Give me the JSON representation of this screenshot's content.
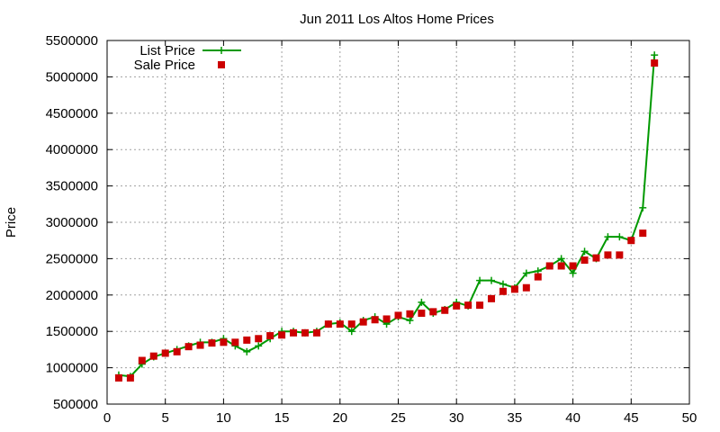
{
  "chart_data": {
    "type": "line",
    "title": "Jun 2011 Los Altos Home Prices",
    "xlabel": "",
    "ylabel": "Price",
    "xlim": [
      0,
      50
    ],
    "ylim": [
      500000,
      5500000
    ],
    "xticks": [
      0,
      5,
      10,
      15,
      20,
      25,
      30,
      35,
      40,
      45,
      50
    ],
    "yticks": [
      500000,
      1000000,
      1500000,
      2000000,
      2500000,
      3000000,
      3500000,
      4000000,
      4500000,
      5000000,
      5500000
    ],
    "grid": true,
    "legend_position": "top-left",
    "series": [
      {
        "name": "List Price",
        "style": "lines+points",
        "marker": "plus",
        "color": "#009900",
        "x": [
          1,
          2,
          3,
          4,
          5,
          6,
          7,
          8,
          9,
          10,
          11,
          12,
          13,
          14,
          15,
          16,
          17,
          18,
          19,
          20,
          21,
          22,
          23,
          24,
          25,
          26,
          27,
          28,
          29,
          30,
          31,
          32,
          33,
          34,
          35,
          36,
          37,
          38,
          39,
          40,
          41,
          42,
          43,
          44,
          45,
          46,
          47
        ],
        "y": [
          900000,
          880000,
          1050000,
          1150000,
          1200000,
          1250000,
          1300000,
          1350000,
          1350000,
          1400000,
          1300000,
          1220000,
          1300000,
          1400000,
          1500000,
          1500000,
          1480000,
          1500000,
          1600000,
          1620000,
          1500000,
          1650000,
          1700000,
          1600000,
          1700000,
          1650000,
          1900000,
          1750000,
          1800000,
          1900000,
          1850000,
          2200000,
          2200000,
          2150000,
          2100000,
          2300000,
          2330000,
          2400000,
          2500000,
          2300000,
          2600000,
          2500000,
          2800000,
          2800000,
          2750000,
          3200000,
          5300000
        ]
      },
      {
        "name": "Sale Price",
        "style": "points",
        "marker": "square",
        "color": "#cc0000",
        "x": [
          1,
          2,
          3,
          4,
          5,
          6,
          7,
          8,
          9,
          10,
          11,
          12,
          13,
          14,
          15,
          16,
          17,
          18,
          19,
          20,
          21,
          22,
          23,
          24,
          25,
          26,
          27,
          28,
          29,
          30,
          31,
          32,
          33,
          34,
          35,
          36,
          37,
          38,
          39,
          40,
          41,
          42,
          43,
          44,
          45,
          46,
          47
        ],
        "y": [
          860000,
          860000,
          1100000,
          1160000,
          1200000,
          1220000,
          1290000,
          1310000,
          1340000,
          1350000,
          1350000,
          1380000,
          1400000,
          1440000,
          1450000,
          1480000,
          1480000,
          1480000,
          1600000,
          1600000,
          1600000,
          1630000,
          1660000,
          1670000,
          1720000,
          1740000,
          1750000,
          1770000,
          1790000,
          1850000,
          1860000,
          1860000,
          1950000,
          2050000,
          2080000,
          2100000,
          2250000,
          2400000,
          2400000,
          2400000,
          2480000,
          2510000,
          2550000,
          2550000,
          2750000,
          2850000,
          5190000
        ]
      }
    ]
  }
}
